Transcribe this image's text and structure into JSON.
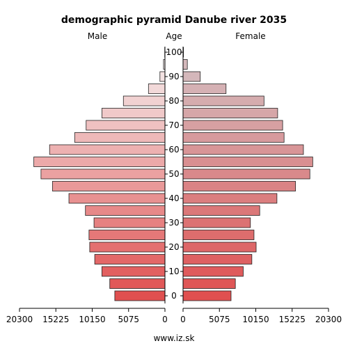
{
  "chart_data": {
    "type": "bar",
    "orientation": "horizontal-pyramid",
    "title": "demographic pyramid Danube river 2035",
    "left_label": "Male",
    "center_label": "Age",
    "right_label": "Female",
    "footer": "www.iz.sk",
    "age_groups": [
      "0",
      "5",
      "10",
      "15",
      "20",
      "25",
      "30",
      "35",
      "40",
      "45",
      "50",
      "55",
      "60",
      "65",
      "70",
      "75",
      "80",
      "85",
      "90",
      "95",
      "100"
    ],
    "age_tick_labels": [
      "0",
      "10",
      "20",
      "30",
      "40",
      "50",
      "60",
      "70",
      "80",
      "90",
      "100"
    ],
    "value_ticks": [
      0,
      5075,
      10150,
      15225,
      20300
    ],
    "value_tick_labels": [
      "0",
      "5075",
      "10150",
      "15225",
      "20300"
    ],
    "xlim": [
      0,
      20300
    ],
    "series": [
      {
        "name": "Male",
        "values": [
          7000,
          7700,
          8800,
          9800,
          10500,
          10600,
          9900,
          11100,
          13400,
          15700,
          17300,
          18300,
          16100,
          12600,
          11000,
          8800,
          5800,
          2300,
          700,
          200,
          30
        ]
      },
      {
        "name": "Female",
        "values": [
          6700,
          7300,
          8400,
          9600,
          10200,
          9900,
          9400,
          10700,
          13100,
          15700,
          17700,
          18100,
          16800,
          14100,
          13900,
          13200,
          11300,
          6000,
          2400,
          600,
          60
        ]
      }
    ],
    "colors": {
      "young": "#e05050",
      "old": "#f4eaea",
      "female_old": "#d4b8bb"
    }
  }
}
